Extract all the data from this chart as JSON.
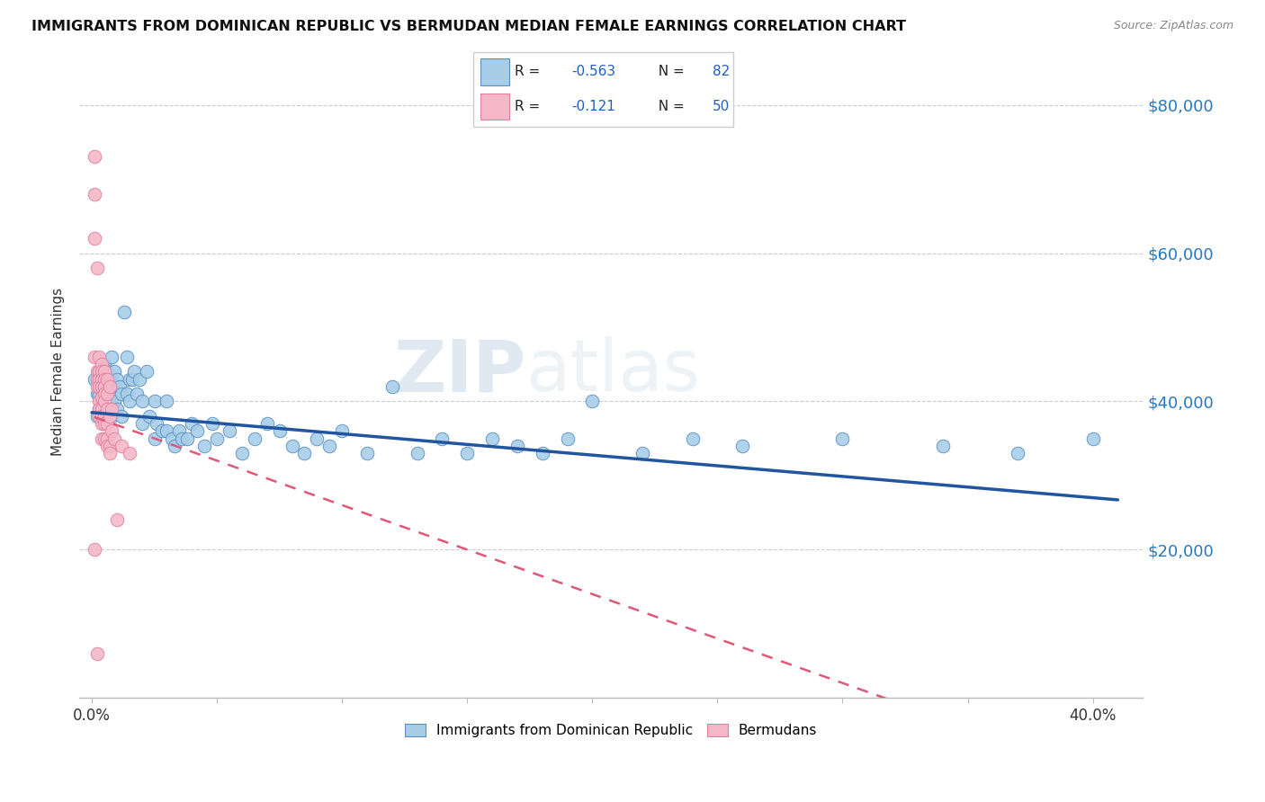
{
  "title": "IMMIGRANTS FROM DOMINICAN REPUBLIC VS BERMUDAN MEDIAN FEMALE EARNINGS CORRELATION CHART",
  "source": "Source: ZipAtlas.com",
  "ylabel": "Median Female Earnings",
  "x_tick_labels": [
    "0.0%",
    "",
    "",
    "",
    "",
    "",
    "",
    "",
    "40.0%"
  ],
  "x_tick_vals": [
    0.0,
    0.05,
    0.1,
    0.15,
    0.2,
    0.25,
    0.3,
    0.35,
    0.4
  ],
  "y_ticks_right": [
    "$20,000",
    "$40,000",
    "$60,000",
    "$80,000"
  ],
  "y_tick_vals": [
    20000,
    40000,
    60000,
    80000
  ],
  "xlim": [
    -0.005,
    0.42
  ],
  "ylim": [
    0,
    88000
  ],
  "legend_label1": "Immigrants from Dominican Republic",
  "legend_label2": "Bermudans",
  "color_blue": "#A8CDE8",
  "color_pink": "#F4B8C8",
  "color_blue_edge": "#5A8FC0",
  "color_pink_edge": "#E080A0",
  "color_trendline_blue": "#2255A0",
  "color_trendline_pink": "#E05878",
  "watermark_zip": "ZIP",
  "watermark_atlas": "atlas",
  "blue_scatter": [
    [
      0.001,
      43000
    ],
    [
      0.002,
      41000
    ],
    [
      0.002,
      38000
    ],
    [
      0.003,
      44000
    ],
    [
      0.003,
      41000
    ],
    [
      0.003,
      39000
    ],
    [
      0.004,
      43500
    ],
    [
      0.004,
      40000
    ],
    [
      0.004,
      38000
    ],
    [
      0.005,
      45000
    ],
    [
      0.005,
      42000
    ],
    [
      0.005,
      38000
    ],
    [
      0.006,
      44000
    ],
    [
      0.006,
      41000
    ],
    [
      0.006,
      38000
    ],
    [
      0.007,
      43000
    ],
    [
      0.007,
      40000
    ],
    [
      0.008,
      46000
    ],
    [
      0.008,
      42000
    ],
    [
      0.008,
      38000
    ],
    [
      0.009,
      44000
    ],
    [
      0.009,
      40000
    ],
    [
      0.01,
      43000
    ],
    [
      0.01,
      39000
    ],
    [
      0.011,
      42000
    ],
    [
      0.012,
      41000
    ],
    [
      0.012,
      38000
    ],
    [
      0.013,
      52000
    ],
    [
      0.014,
      46000
    ],
    [
      0.014,
      41000
    ],
    [
      0.015,
      43000
    ],
    [
      0.015,
      40000
    ],
    [
      0.016,
      43000
    ],
    [
      0.017,
      44000
    ],
    [
      0.018,
      41000
    ],
    [
      0.019,
      43000
    ],
    [
      0.02,
      40000
    ],
    [
      0.02,
      37000
    ],
    [
      0.022,
      44000
    ],
    [
      0.023,
      38000
    ],
    [
      0.025,
      40000
    ],
    [
      0.025,
      35000
    ],
    [
      0.026,
      37000
    ],
    [
      0.028,
      36000
    ],
    [
      0.03,
      40000
    ],
    [
      0.03,
      36000
    ],
    [
      0.032,
      35000
    ],
    [
      0.033,
      34000
    ],
    [
      0.035,
      36000
    ],
    [
      0.036,
      35000
    ],
    [
      0.038,
      35000
    ],
    [
      0.04,
      37000
    ],
    [
      0.042,
      36000
    ],
    [
      0.045,
      34000
    ],
    [
      0.048,
      37000
    ],
    [
      0.05,
      35000
    ],
    [
      0.055,
      36000
    ],
    [
      0.06,
      33000
    ],
    [
      0.065,
      35000
    ],
    [
      0.07,
      37000
    ],
    [
      0.075,
      36000
    ],
    [
      0.08,
      34000
    ],
    [
      0.085,
      33000
    ],
    [
      0.09,
      35000
    ],
    [
      0.095,
      34000
    ],
    [
      0.1,
      36000
    ],
    [
      0.11,
      33000
    ],
    [
      0.12,
      42000
    ],
    [
      0.13,
      33000
    ],
    [
      0.14,
      35000
    ],
    [
      0.15,
      33000
    ],
    [
      0.16,
      35000
    ],
    [
      0.17,
      34000
    ],
    [
      0.18,
      33000
    ],
    [
      0.19,
      35000
    ],
    [
      0.2,
      40000
    ],
    [
      0.22,
      33000
    ],
    [
      0.24,
      35000
    ],
    [
      0.26,
      34000
    ],
    [
      0.3,
      35000
    ],
    [
      0.34,
      34000
    ],
    [
      0.37,
      33000
    ],
    [
      0.4,
      35000
    ]
  ],
  "pink_scatter": [
    [
      0.001,
      73000
    ],
    [
      0.001,
      68000
    ],
    [
      0.001,
      62000
    ],
    [
      0.002,
      58000
    ],
    [
      0.001,
      46000
    ],
    [
      0.002,
      44000
    ],
    [
      0.002,
      43000
    ],
    [
      0.002,
      42000
    ],
    [
      0.003,
      46000
    ],
    [
      0.003,
      44000
    ],
    [
      0.003,
      43000
    ],
    [
      0.003,
      42000
    ],
    [
      0.003,
      40000
    ],
    [
      0.003,
      39000
    ],
    [
      0.003,
      38000
    ],
    [
      0.004,
      45000
    ],
    [
      0.004,
      44000
    ],
    [
      0.004,
      43000
    ],
    [
      0.004,
      42000
    ],
    [
      0.004,
      40500
    ],
    [
      0.004,
      39000
    ],
    [
      0.004,
      37000
    ],
    [
      0.004,
      35000
    ],
    [
      0.004,
      38000
    ],
    [
      0.005,
      44000
    ],
    [
      0.005,
      43000
    ],
    [
      0.005,
      42000
    ],
    [
      0.005,
      41000
    ],
    [
      0.005,
      40000
    ],
    [
      0.005,
      38000
    ],
    [
      0.005,
      37000
    ],
    [
      0.005,
      35000
    ],
    [
      0.006,
      43000
    ],
    [
      0.006,
      41000
    ],
    [
      0.006,
      39000
    ],
    [
      0.006,
      37000
    ],
    [
      0.006,
      35000
    ],
    [
      0.006,
      34000
    ],
    [
      0.007,
      42000
    ],
    [
      0.007,
      38000
    ],
    [
      0.007,
      34000
    ],
    [
      0.007,
      33000
    ],
    [
      0.008,
      39000
    ],
    [
      0.008,
      36000
    ],
    [
      0.009,
      35000
    ],
    [
      0.01,
      24000
    ],
    [
      0.012,
      34000
    ],
    [
      0.015,
      33000
    ],
    [
      0.001,
      20000
    ],
    [
      0.002,
      6000
    ]
  ]
}
